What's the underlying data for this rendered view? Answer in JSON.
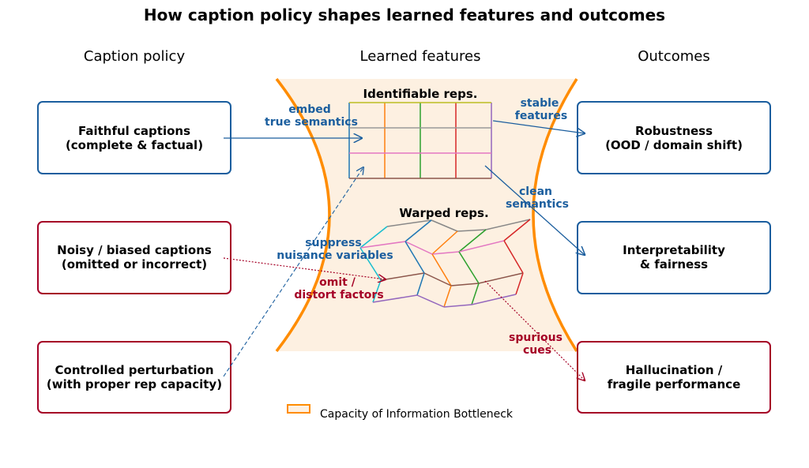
{
  "title": "How caption policy shapes learned features and outcomes",
  "columns": {
    "left": "Caption policy",
    "middle": "Learned features",
    "right": "Outcomes"
  },
  "colors": {
    "blue": "#1b5e9e",
    "red": "#a50026",
    "funnel": "#ff8c00",
    "funnel_fill": "#fdf0e1"
  },
  "left_boxes": [
    {
      "line1": "Faithful captions",
      "line2": "(complete & factual)",
      "color": "#1b5e9e"
    },
    {
      "line1": "Noisy / biased captions",
      "line2": "(omitted or incorrect)",
      "color": "#a50026"
    },
    {
      "line1": "Controlled perturbation",
      "line2": "(with proper rep capacity)",
      "color": "#a50026"
    }
  ],
  "right_boxes": [
    {
      "line1": "Robustness",
      "line2": "(OOD / domain shift)",
      "color": "#1b5e9e"
    },
    {
      "line1": "Interpretability",
      "line2": "& fairness",
      "color": "#1b5e9e"
    },
    {
      "line1": "Hallucination /",
      "line2": "fragile performance",
      "color": "#a50026"
    }
  ],
  "center": {
    "identifiable_label": "Identifiable reps.",
    "warped_label": "Warped reps."
  },
  "arrow_labels": {
    "embed": [
      "embed",
      "true semantics"
    ],
    "stable": [
      "stable",
      "features"
    ],
    "clean": [
      "clean",
      "semantics"
    ],
    "suppress": [
      "suppress",
      "nuisance variables"
    ],
    "omit": [
      "omit /",
      "distort factors"
    ],
    "spurious": [
      "spurious",
      "cues"
    ]
  },
  "legend": {
    "label": "Capacity of Information Bottleneck"
  }
}
